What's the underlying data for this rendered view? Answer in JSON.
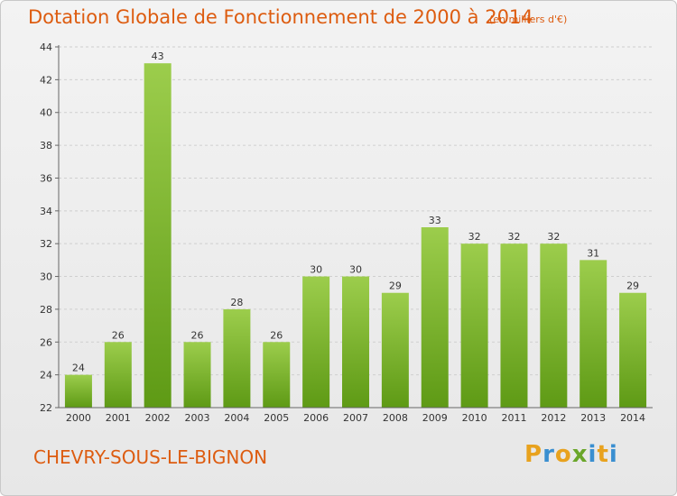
{
  "header": {
    "title": "Dotation Globale de Fonctionnement de 2000 à 2014",
    "subtitle": "(en milliers d'€)"
  },
  "footer": {
    "commune": "CHEVRY-SOUS-LE-BIGNON",
    "logo_letters": [
      "P",
      "r",
      "o",
      "x",
      "i",
      "t",
      "i"
    ],
    "logo_colors": [
      "#e8a21e",
      "#3a8fd0",
      "#e8a21e",
      "#6aa62a",
      "#3a8fd0",
      "#e8a21e",
      "#3a8fd0"
    ]
  },
  "colors": {
    "title": "#dd5c10",
    "bar_top": "#9ccd4c",
    "bar_bottom": "#5e9a15",
    "grid": "#cfcfcf",
    "axis": "#666666"
  },
  "chart_data": {
    "type": "bar",
    "title": "Dotation Globale de Fonctionnement de 2000 à 2014",
    "subtitle": "(en milliers d'€)",
    "categories": [
      "2000",
      "2001",
      "2002",
      "2003",
      "2004",
      "2005",
      "2006",
      "2007",
      "2008",
      "2009",
      "2010",
      "2011",
      "2012",
      "2013",
      "2014"
    ],
    "values": [
      24,
      26,
      43,
      26,
      28,
      26,
      30,
      30,
      29,
      33,
      32,
      32,
      32,
      31,
      29
    ],
    "ylim": [
      22,
      44
    ],
    "yticks": [
      22,
      24,
      26,
      28,
      30,
      32,
      34,
      36,
      38,
      40,
      42,
      44
    ],
    "grid": true,
    "legend": "none"
  }
}
